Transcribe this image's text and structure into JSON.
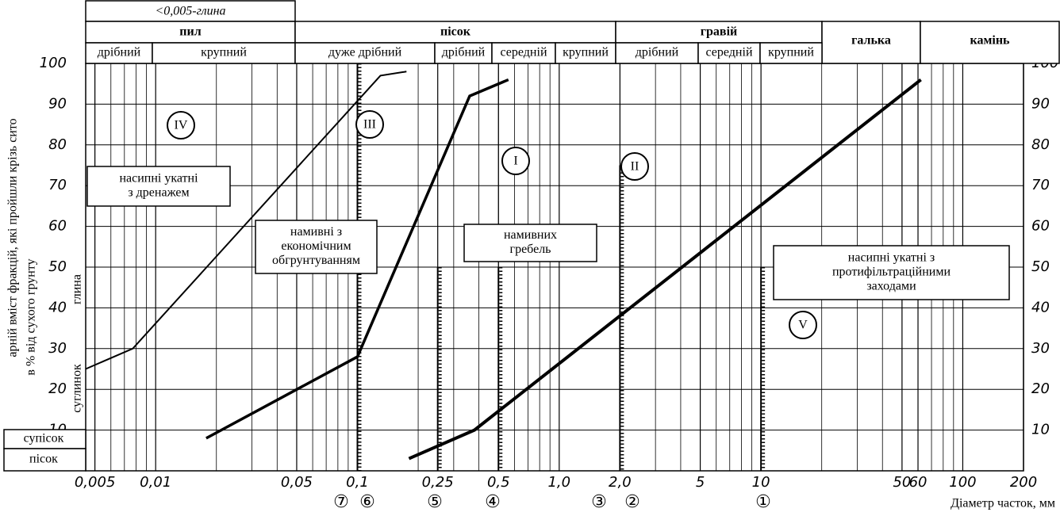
{
  "chart_data": {
    "type": "line",
    "xscale": "log",
    "grid": true,
    "minor_grid": true,
    "xlim": [
      0.0045,
      200
    ],
    "ylim": [
      0,
      100
    ],
    "xticks": [
      {
        "value": 0.005,
        "label": "0,005"
      },
      {
        "value": 0.01,
        "label": "0,01"
      },
      {
        "value": 0.05,
        "label": "0,05"
      },
      {
        "value": 0.1,
        "label": "0,1"
      },
      {
        "value": 0.25,
        "label": "0,25"
      },
      {
        "value": 0.5,
        "label": "0,5"
      },
      {
        "value": 1,
        "label": "1,0"
      },
      {
        "value": 2,
        "label": "2,0"
      },
      5,
      10,
      50,
      60,
      100,
      200
    ],
    "yticks": [
      10,
      20,
      30,
      40,
      50,
      60,
      70,
      80,
      90,
      100
    ],
    "x_title": "Діаметр часток, мм",
    "y_title": [
      "арній вміст фракцій, які пройшли крізь сито",
      "в % від сухого грунту"
    ],
    "series": [
      {
        "color": "#000",
        "width": 2,
        "x": [
          0.0045,
          0.0077,
          0.13,
          0.175
        ],
        "values": [
          25,
          30,
          97,
          98
        ]
      },
      {
        "color": "#000",
        "width": 3.5,
        "x": [
          0.0178,
          0.1,
          0.36,
          0.56
        ],
        "values": [
          8,
          28,
          92,
          96
        ]
      },
      {
        "color": "#000",
        "width": 4,
        "x": [
          0.18,
          0.38,
          62
        ],
        "values": [
          3,
          10,
          96
        ]
      }
    ],
    "boundaries": [
      {
        "x": 0.1,
        "top": 100
      },
      {
        "x": 0.25,
        "top": 50
      },
      {
        "x": 0.5,
        "top": 50
      },
      {
        "x": 2,
        "top": 75
      },
      {
        "x": 10,
        "top": 50
      }
    ],
    "boundary_labels": [
      "⑦",
      "⑥",
      "⑤",
      "④",
      "③",
      "②",
      "①"
    ],
    "header": {
      "clay": "<0,005-глина",
      "groups": [
        "пил",
        "пісок",
        "гравій",
        "галька",
        "камінь"
      ],
      "subgroups": [
        "дрібний",
        "крупний",
        "дуже дрібний",
        "дрібний",
        "середній",
        "крупний",
        "дрібний",
        "середній",
        "крупний"
      ]
    },
    "side_labels": [
      "глина",
      "суглинок",
      "супісок",
      "пісок"
    ],
    "annotations": [
      {
        "lines": [
          "насипні укатні",
          "з дренажем"
        ]
      },
      {
        "lines": [
          "намивні з",
          "економічним",
          "обгрунтуванням"
        ]
      },
      {
        "lines": [
          "намивних",
          "гребель"
        ]
      },
      {
        "lines": [
          "насипні укатні з",
          "протифільтраційними",
          "заходами"
        ]
      }
    ],
    "region_labels": [
      "IV",
      "III",
      "I",
      "II",
      "V"
    ]
  }
}
